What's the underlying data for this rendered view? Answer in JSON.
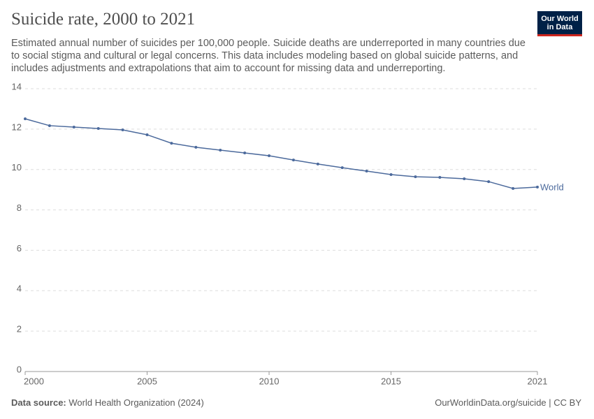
{
  "chart_data": {
    "type": "line",
    "title": "Suicide rate, 2000 to 2021",
    "subtitle": "Estimated annual number of suicides per 100,000 people. Suicide deaths are underreported in many countries due to social stigma and cultural or legal concerns. This data includes modeling based on global suicide patterns, and includes adjustments and extrapolations that aim to account for missing data and underreporting.",
    "logo": [
      "Our World",
      "in Data"
    ],
    "source_label": "Data source:",
    "source": "World Health Organization (2024)",
    "credit": "OurWorldinData.org/suicide | CC BY",
    "x": [
      2000,
      2001,
      2002,
      2003,
      2004,
      2005,
      2006,
      2007,
      2008,
      2009,
      2010,
      2011,
      2012,
      2013,
      2014,
      2015,
      2016,
      2017,
      2018,
      2019,
      2020,
      2021
    ],
    "series": [
      {
        "name": "World",
        "color": "#4c6a9c",
        "values": [
          12.51,
          12.17,
          12.1,
          12.03,
          11.96,
          11.72,
          11.3,
          11.1,
          10.96,
          10.82,
          10.68,
          10.47,
          10.27,
          10.09,
          9.92,
          9.75,
          9.64,
          9.61,
          9.54,
          9.4,
          9.06,
          9.13
        ]
      }
    ],
    "xlim": [
      2000,
      2021
    ],
    "xticks": [
      2000,
      2005,
      2010,
      2015,
      2021
    ],
    "ylim": [
      0,
      14
    ],
    "yticks": [
      0,
      2,
      4,
      6,
      8,
      10,
      12,
      14
    ],
    "grid": true
  }
}
